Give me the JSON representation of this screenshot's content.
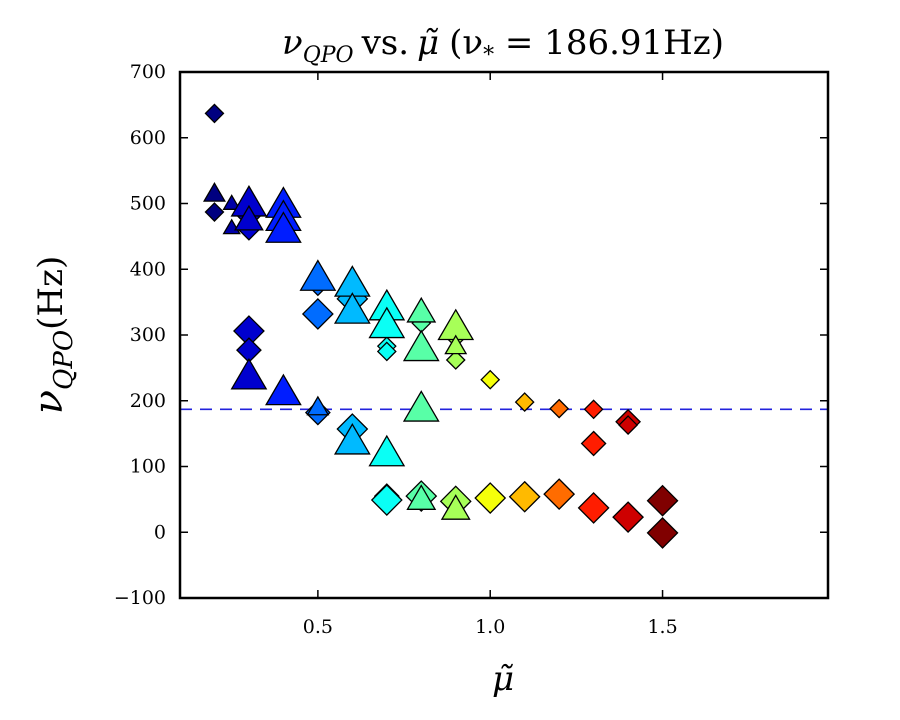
{
  "chart_data": {
    "type": "scatter",
    "title": "νQPO vs. μ̃ (ν* = 186.91Hz)",
    "title_parts": {
      "nu": "ν",
      "nu_sub": "QPO",
      "vs": "vs.",
      "mu": "μ̃",
      "ref_paren": "(ν",
      "ref_sub": "*",
      "ref_value": " = 186.91Hz)"
    },
    "xlabel": "μ̃",
    "ylabel": "νQPO(Hz)",
    "ylabel_parts": {
      "nu": "ν",
      "sub": "QPO",
      "unit": "(Hz)"
    },
    "xlim": [
      0.1,
      1.98
    ],
    "ylim": [
      -100,
      700
    ],
    "xticks": [
      0.5,
      1.0,
      1.5
    ],
    "xtick_labels": [
      "0.5",
      "1.0",
      "1.5"
    ],
    "yticks": [
      -100,
      0,
      100,
      200,
      300,
      400,
      500,
      600,
      700
    ],
    "ytick_labels": [
      "−100",
      "0",
      "100",
      "200",
      "300",
      "400",
      "500",
      "600",
      "700"
    ],
    "reference_line": {
      "y": 186.91,
      "color": "#2222dd",
      "style": "dashed"
    },
    "colormap": "jet",
    "color_range": [
      0.2,
      1.5
    ],
    "series": [
      {
        "name": "diamonds",
        "marker": "diamond",
        "points": [
          {
            "x": 0.2,
            "y": 637,
            "s": "s"
          },
          {
            "x": 0.2,
            "y": 487,
            "s": "s"
          },
          {
            "x": 0.3,
            "y": 482,
            "s": "m"
          },
          {
            "x": 0.3,
            "y": 463,
            "s": "m"
          },
          {
            "x": 0.3,
            "y": 306,
            "s": "l"
          },
          {
            "x": 0.3,
            "y": 277,
            "s": "m"
          },
          {
            "x": 0.5,
            "y": 374,
            "s": "s"
          },
          {
            "x": 0.5,
            "y": 332,
            "s": "l"
          },
          {
            "x": 0.5,
            "y": 182,
            "s": "m"
          },
          {
            "x": 0.6,
            "y": 355,
            "s": "l"
          },
          {
            "x": 0.6,
            "y": 157,
            "s": "l"
          },
          {
            "x": 0.7,
            "y": 283,
            "s": "s"
          },
          {
            "x": 0.7,
            "y": 275,
            "s": "s"
          },
          {
            "x": 0.7,
            "y": 55,
            "s": "m"
          },
          {
            "x": 0.7,
            "y": 49,
            "s": "l"
          },
          {
            "x": 0.8,
            "y": 318,
            "s": "s"
          },
          {
            "x": 0.8,
            "y": 55,
            "s": "l"
          },
          {
            "x": 0.9,
            "y": 300,
            "s": "m"
          },
          {
            "x": 0.9,
            "y": 262,
            "s": "s"
          },
          {
            "x": 0.9,
            "y": 47,
            "s": "l"
          },
          {
            "x": 1.0,
            "y": 232,
            "s": "s"
          },
          {
            "x": 1.0,
            "y": 52,
            "s": "l"
          },
          {
            "x": 1.1,
            "y": 198,
            "s": "s"
          },
          {
            "x": 1.1,
            "y": 54,
            "s": "l"
          },
          {
            "x": 1.2,
            "y": 188,
            "s": "s"
          },
          {
            "x": 1.2,
            "y": 58,
            "s": "l"
          },
          {
            "x": 1.3,
            "y": 187,
            "s": "s"
          },
          {
            "x": 1.3,
            "y": 135,
            "s": "m"
          },
          {
            "x": 1.3,
            "y": 37,
            "s": "l"
          },
          {
            "x": 1.4,
            "y": 168,
            "s": "m"
          },
          {
            "x": 1.4,
            "y": 163,
            "s": "s"
          },
          {
            "x": 1.4,
            "y": 23,
            "s": "l"
          },
          {
            "x": 1.5,
            "y": 48,
            "s": "l"
          },
          {
            "x": 1.5,
            "y": -1,
            "s": "l"
          }
        ]
      },
      {
        "name": "triangles",
        "marker": "triangle",
        "points": [
          {
            "x": 0.2,
            "y": 515,
            "s": "s"
          },
          {
            "x": 0.25,
            "y": 500,
            "s": "xs"
          },
          {
            "x": 0.25,
            "y": 463,
            "s": "xs"
          },
          {
            "x": 0.3,
            "y": 500,
            "s": "l"
          },
          {
            "x": 0.3,
            "y": 475,
            "s": "m"
          },
          {
            "x": 0.3,
            "y": 237,
            "s": "l"
          },
          {
            "x": 0.4,
            "y": 498,
            "s": "l"
          },
          {
            "x": 0.4,
            "y": 478,
            "s": "l"
          },
          {
            "x": 0.4,
            "y": 460,
            "s": "l"
          },
          {
            "x": 0.4,
            "y": 213,
            "s": "l"
          },
          {
            "x": 0.5,
            "y": 387,
            "s": "l"
          },
          {
            "x": 0.5,
            "y": 190,
            "s": "s"
          },
          {
            "x": 0.6,
            "y": 378,
            "s": "l"
          },
          {
            "x": 0.6,
            "y": 337,
            "s": "l"
          },
          {
            "x": 0.6,
            "y": 138,
            "s": "l"
          },
          {
            "x": 0.7,
            "y": 342,
            "s": "l"
          },
          {
            "x": 0.7,
            "y": 315,
            "s": "l"
          },
          {
            "x": 0.7,
            "y": 120,
            "s": "l"
          },
          {
            "x": 0.8,
            "y": 335,
            "s": "m"
          },
          {
            "x": 0.8,
            "y": 280,
            "s": "l"
          },
          {
            "x": 0.8,
            "y": 188,
            "s": "l"
          },
          {
            "x": 0.8,
            "y": 50,
            "s": "m"
          },
          {
            "x": 0.9,
            "y": 312,
            "s": "l"
          },
          {
            "x": 0.9,
            "y": 283,
            "s": "s"
          },
          {
            "x": 0.9,
            "y": 35,
            "s": "m"
          }
        ]
      }
    ]
  }
}
